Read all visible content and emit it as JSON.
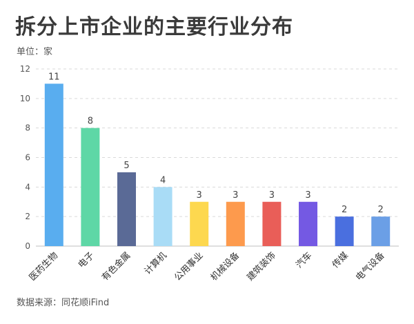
{
  "title": "拆分上市企业的主要行业分布",
  "unit_label": "单位：家",
  "source_label": "数据来源：同花顺iFind",
  "chart_data": {
    "type": "bar",
    "title": "拆分上市企业的主要行业分布",
    "ylabel": "单位：家",
    "xlabel": "",
    "ylim": [
      0,
      12
    ],
    "yticks": [
      0,
      2,
      4,
      6,
      8,
      10,
      12
    ],
    "grid": true,
    "categories": [
      "医药生物",
      "电子",
      "有色金属",
      "计算机",
      "公用事业",
      "机械设备",
      "建筑装饰",
      "汽车",
      "传媒",
      "电气设备"
    ],
    "values": [
      11,
      8,
      5,
      4,
      3,
      3,
      3,
      3,
      2,
      2
    ],
    "colors": [
      "#59adef",
      "#5ed7a6",
      "#5a6a96",
      "#a9dcf6",
      "#fdd84f",
      "#fd9a4d",
      "#e95e58",
      "#7459e3",
      "#4a6fdf",
      "#6b9fe6"
    ]
  }
}
